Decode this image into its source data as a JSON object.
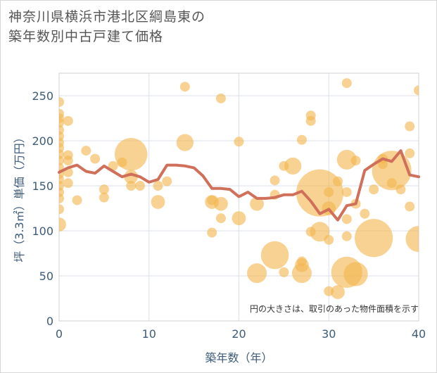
{
  "title_lines": [
    "神奈川県横浜市港北区綱島東の",
    "築年数別中古戸建て価格"
  ],
  "chart_data": {
    "type": "scatter",
    "title": "神奈川県横浜市港北区綱島東の築年数別中古戸建て価格",
    "xlabel": "築年数（年）",
    "ylabel": "坪（3.3㎡）単価（万円）",
    "xlim": [
      0,
      40
    ],
    "ylim": [
      0,
      275
    ],
    "x_ticks": [
      0,
      10,
      20,
      30,
      40
    ],
    "y_ticks": [
      0,
      50,
      100,
      150,
      200,
      250
    ],
    "grid": true,
    "annotation": "円の大きさは、取引のあった物件面積を示す",
    "colors": {
      "bubble": "#f3b64f",
      "line": "#d06f5a"
    },
    "bubbles": [
      {
        "x": 0,
        "y": 243,
        "size": 1
      },
      {
        "x": 0,
        "y": 230,
        "size": 1
      },
      {
        "x": 0,
        "y": 225,
        "size": 1
      },
      {
        "x": 0,
        "y": 220,
        "size": 1
      },
      {
        "x": 0,
        "y": 212,
        "size": 1
      },
      {
        "x": 0,
        "y": 205,
        "size": 1
      },
      {
        "x": 0,
        "y": 198,
        "size": 1
      },
      {
        "x": 0,
        "y": 192,
        "size": 1
      },
      {
        "x": 0,
        "y": 185,
        "size": 1
      },
      {
        "x": 0,
        "y": 178,
        "size": 1
      },
      {
        "x": 0,
        "y": 170,
        "size": 1
      },
      {
        "x": 0,
        "y": 163,
        "size": 1
      },
      {
        "x": 0,
        "y": 157,
        "size": 1
      },
      {
        "x": 0,
        "y": 150,
        "size": 1
      },
      {
        "x": 0,
        "y": 143,
        "size": 1
      },
      {
        "x": 0,
        "y": 136,
        "size": 1
      },
      {
        "x": 0,
        "y": 124,
        "size": 1
      },
      {
        "x": 0,
        "y": 107,
        "size": 2
      },
      {
        "x": 1,
        "y": 222,
        "size": 1
      },
      {
        "x": 1,
        "y": 184,
        "size": 1
      },
      {
        "x": 1,
        "y": 178,
        "size": 1
      },
      {
        "x": 1,
        "y": 165,
        "size": 1
      },
      {
        "x": 1,
        "y": 153,
        "size": 1
      },
      {
        "x": 2,
        "y": 134,
        "size": 1
      },
      {
        "x": 3,
        "y": 189,
        "size": 1
      },
      {
        "x": 4,
        "y": 180,
        "size": 1
      },
      {
        "x": 5,
        "y": 146,
        "size": 1
      },
      {
        "x": 5,
        "y": 137,
        "size": 1
      },
      {
        "x": 6,
        "y": 172,
        "size": 1
      },
      {
        "x": 7,
        "y": 176,
        "size": 1
      },
      {
        "x": 8,
        "y": 185,
        "size": 11
      },
      {
        "x": 8,
        "y": 160,
        "size": 2
      },
      {
        "x": 8,
        "y": 150,
        "size": 1
      },
      {
        "x": 9,
        "y": 150,
        "size": 1
      },
      {
        "x": 11,
        "y": 150,
        "size": 1
      },
      {
        "x": 11,
        "y": 132,
        "size": 2
      },
      {
        "x": 12,
        "y": 155,
        "size": 1
      },
      {
        "x": 14,
        "y": 260,
        "size": 1
      },
      {
        "x": 14,
        "y": 198,
        "size": 3
      },
      {
        "x": 17,
        "y": 134,
        "size": 1
      },
      {
        "x": 17,
        "y": 132,
        "size": 2
      },
      {
        "x": 17,
        "y": 98,
        "size": 1
      },
      {
        "x": 18,
        "y": 247,
        "size": 1
      },
      {
        "x": 18,
        "y": 130,
        "size": 2
      },
      {
        "x": 18,
        "y": 114,
        "size": 1
      },
      {
        "x": 20,
        "y": 199,
        "size": 1
      },
      {
        "x": 20,
        "y": 114,
        "size": 2
      },
      {
        "x": 22,
        "y": 130,
        "size": 2
      },
      {
        "x": 22,
        "y": 53,
        "size": 4
      },
      {
        "x": 24,
        "y": 156,
        "size": 1
      },
      {
        "x": 24,
        "y": 140,
        "size": 1
      },
      {
        "x": 24,
        "y": 73,
        "size": 8
      },
      {
        "x": 25,
        "y": 172,
        "size": 1
      },
      {
        "x": 25,
        "y": 54,
        "size": 1
      },
      {
        "x": 26,
        "y": 172,
        "size": 3
      },
      {
        "x": 27,
        "y": 201,
        "size": 1
      },
      {
        "x": 27,
        "y": 66,
        "size": 1
      },
      {
        "x": 27,
        "y": 53,
        "size": 4
      },
      {
        "x": 27,
        "y": 62,
        "size": 2
      },
      {
        "x": 28,
        "y": 228,
        "size": 1
      },
      {
        "x": 28,
        "y": 222,
        "size": 1
      },
      {
        "x": 28,
        "y": 99,
        "size": 1
      },
      {
        "x": 29,
        "y": 142,
        "size": 23
      },
      {
        "x": 29,
        "y": 99,
        "size": 4
      },
      {
        "x": 30,
        "y": 143,
        "size": 1
      },
      {
        "x": 30,
        "y": 125,
        "size": 2
      },
      {
        "x": 30,
        "y": 90,
        "size": 1
      },
      {
        "x": 30,
        "y": 33,
        "size": 1
      },
      {
        "x": 31,
        "y": 155,
        "size": 1
      },
      {
        "x": 31,
        "y": 32,
        "size": 2
      },
      {
        "x": 32,
        "y": 264,
        "size": 1
      },
      {
        "x": 32,
        "y": 179,
        "size": 4
      },
      {
        "x": 32,
        "y": 143,
        "size": 1
      },
      {
        "x": 32,
        "y": 113,
        "size": 1
      },
      {
        "x": 32,
        "y": 94,
        "size": 1
      },
      {
        "x": 32,
        "y": 54,
        "size": 10
      },
      {
        "x": 33,
        "y": 52,
        "size": 6
      },
      {
        "x": 33,
        "y": 178,
        "size": 1
      },
      {
        "x": 33,
        "y": 130,
        "size": 1
      },
      {
        "x": 34,
        "y": 119,
        "size": 1
      },
      {
        "x": 35,
        "y": 146,
        "size": 1
      },
      {
        "x": 35,
        "y": 92,
        "size": 15
      },
      {
        "x": 36,
        "y": 180,
        "size": 1
      },
      {
        "x": 36,
        "y": 174,
        "size": 1
      },
      {
        "x": 37,
        "y": 167,
        "size": 16
      },
      {
        "x": 37,
        "y": 153,
        "size": 1
      },
      {
        "x": 38,
        "y": 146,
        "size": 1
      },
      {
        "x": 39,
        "y": 216,
        "size": 1
      },
      {
        "x": 39,
        "y": 186,
        "size": 1
      },
      {
        "x": 39,
        "y": 127,
        "size": 1
      },
      {
        "x": 40,
        "y": 256,
        "size": 1
      },
      {
        "x": 40,
        "y": 91,
        "size": 7
      }
    ],
    "series": [
      {
        "type": "line",
        "x": [
          0,
          1,
          2,
          3,
          4,
          5,
          6,
          7,
          8,
          9,
          10,
          11,
          12,
          13,
          14,
          15,
          16,
          17,
          18,
          19,
          20,
          21,
          22,
          23,
          24,
          25,
          26,
          27,
          28,
          29,
          30,
          31,
          32,
          33,
          34,
          35,
          36,
          37,
          38,
          39,
          40
        ],
        "y": [
          165,
          170,
          173,
          166,
          164,
          172,
          166,
          160,
          163,
          160,
          154,
          157,
          173,
          173,
          172,
          170,
          161,
          147,
          147,
          146,
          138,
          143,
          136,
          136,
          137,
          140,
          140,
          144,
          133,
          119,
          124,
          112,
          128,
          130,
          167,
          174,
          180,
          177,
          189,
          162,
          160
        ]
      }
    ]
  }
}
